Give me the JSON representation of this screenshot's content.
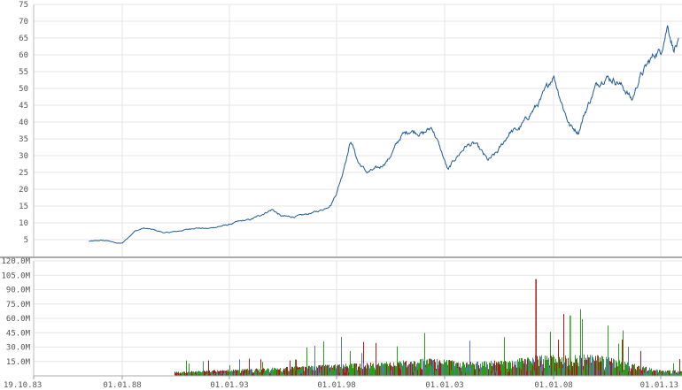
{
  "chart_data": [
    {
      "type": "line",
      "title": "",
      "xlabel": "",
      "ylabel": "",
      "ylim": [
        0,
        75
      ],
      "y_ticks": [
        "5",
        "10",
        "15",
        "20",
        "25",
        "30",
        "35",
        "40",
        "45",
        "50",
        "55",
        "60",
        "65",
        "70",
        "75"
      ],
      "x_tick_labels": [
        "19.10.83",
        "01.01.88",
        "01.01.93",
        "01.01.98",
        "01.01.03",
        "01.01.08",
        "01.01.13"
      ],
      "grid": true,
      "line_color": "#1f5c99",
      "series": [
        {
          "x": [
            "1986-06",
            "1987-01",
            "1987-06",
            "1987-10",
            "1988-01",
            "1988-04",
            "1988-08",
            "1989-01",
            "1989-06",
            "1990-01",
            "1990-08",
            "1991-01",
            "1991-06",
            "1992-01",
            "1992-06",
            "1993-01",
            "1993-06",
            "1994-01",
            "1994-06",
            "1995-01",
            "1995-06",
            "1996-01",
            "1996-06",
            "1997-01",
            "1997-06",
            "1997-10",
            "1998-01",
            "1998-04",
            "1998-06",
            "1998-09",
            "1999-01",
            "1999-06",
            "2000-01",
            "2000-06",
            "2001-01",
            "2001-06",
            "2002-01",
            "2002-06",
            "2002-10",
            "2003-03",
            "2003-06",
            "2004-01",
            "2004-06",
            "2005-01",
            "2005-06",
            "2006-01",
            "2006-06",
            "2007-01",
            "2007-06",
            "2007-10",
            "2008-01",
            "2008-06",
            "2008-10",
            "2009-03",
            "2009-06",
            "2010-01",
            "2010-06",
            "2011-01",
            "2011-06",
            "2011-09",
            "2012-01",
            "2012-06",
            "2012-10",
            "2013-01",
            "2013-05",
            "2013-08",
            "2013-11"
          ],
          "values": [
            4.5,
            4.8,
            4.6,
            3.9,
            4.0,
            5.5,
            7.5,
            8.4,
            8.0,
            7.0,
            7.5,
            8.0,
            8.5,
            8.3,
            8.8,
            9.5,
            10.4,
            11.0,
            12.2,
            14.0,
            12.0,
            11.8,
            12.3,
            13.2,
            14.1,
            15.5,
            19.0,
            24.0,
            28.5,
            34.5,
            28.0,
            25.0,
            26.5,
            29.0,
            36.0,
            37.5,
            36.5,
            38.5,
            33.0,
            25.5,
            28.5,
            33.0,
            33.5,
            28.5,
            31.0,
            37.0,
            38.0,
            43.0,
            46.5,
            51.0,
            54.0,
            45.0,
            39.0,
            37.0,
            42.0,
            51.0,
            53.5,
            52.0,
            49.0,
            46.5,
            53.0,
            57.5,
            60.5,
            61.0,
            69.0,
            62.0,
            63.5
          ]
        }
      ]
    },
    {
      "type": "bar",
      "title": "",
      "xlabel": "",
      "ylabel": "",
      "ylim": [
        0,
        120000000
      ],
      "y_ticks": [
        "15.0M",
        "30.0M",
        "45.0M",
        "60.0M",
        "75.0M",
        "90.0M",
        "105.0M",
        "120.0M"
      ],
      "x_tick_labels": [
        "19.10.83",
        "01.01.88",
        "01.01.93",
        "01.01.98",
        "01.01.03",
        "01.01.08",
        "01.01.13"
      ],
      "bar_colors": {
        "up": "#2a9d1a",
        "down": "#a81c1c",
        "neutral": "#5577bb"
      },
      "volume_start": "1990-06",
      "series": [
        {
          "name": "",
          "x": [
            "1990-06",
            "1993-01",
            "1996-01",
            "1998-06",
            "2000-01",
            "2002-07",
            "2004-01",
            "2006-01",
            "2007-03",
            "2008-01",
            "2008-10",
            "2010-01",
            "2012-01",
            "2013-01"
          ],
          "values": [
            6000000,
            9000000,
            13000000,
            17000000,
            19000000,
            25000000,
            20000000,
            22000000,
            101000000,
            30000000,
            63000000,
            30000000,
            15000000,
            8000000
          ]
        }
      ]
    }
  ]
}
